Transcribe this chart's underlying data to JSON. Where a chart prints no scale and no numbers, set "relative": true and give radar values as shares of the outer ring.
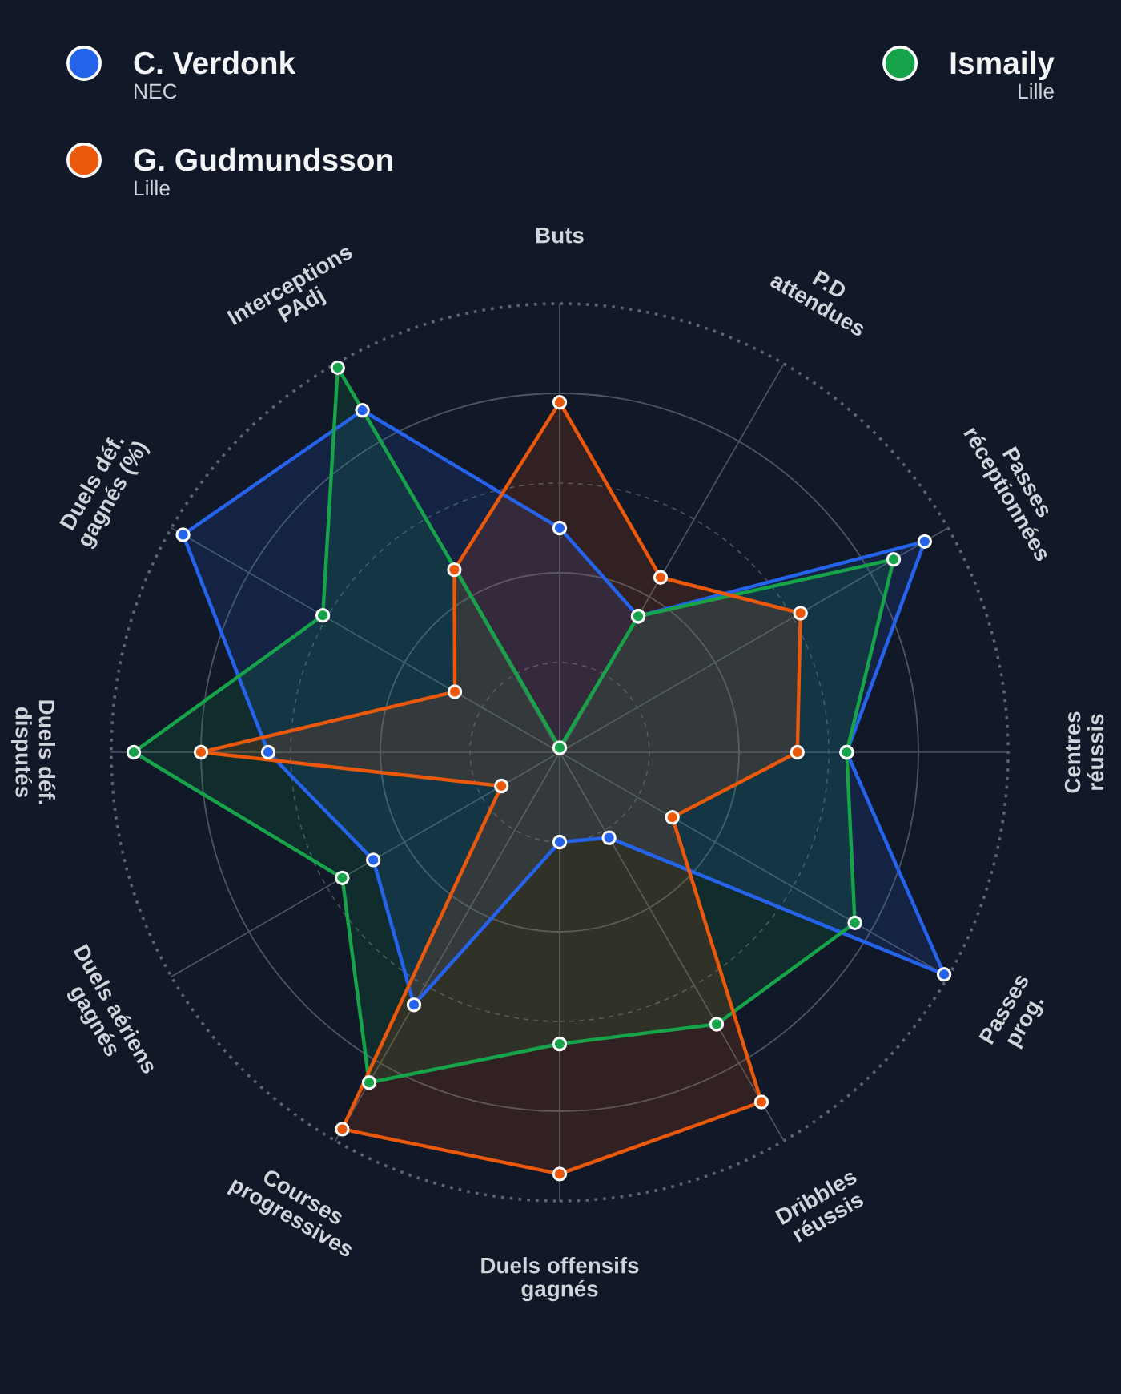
{
  "chart_data": {
    "type": "radar",
    "relative": true,
    "categories": [
      "Buts",
      "P.D\nattendues",
      "Passes\nréceptionnées",
      "Centres\nréussis",
      "Passes\nprog.",
      "Dribbles\nréussis",
      "Duels offensifs\ngagnés",
      "Courses\nprogressives",
      "Duels aériens\ngagnés",
      "Duels déf.\ndisputés",
      "Duels déf.\ngagnés (%)",
      "Interceptions\nPAdj"
    ],
    "series": [
      {
        "name": "C. Verdonk\nNEC",
        "color": "#2563eb",
        "values": [
          0.5,
          0.35,
          0.94,
          0.64,
          0.99,
          0.22,
          0.2,
          0.65,
          0.48,
          0.65,
          0.97,
          0.88
        ]
      },
      {
        "name": "Ismaily\nLille",
        "color": "#16a34a",
        "values": [
          0.01,
          0.35,
          0.86,
          0.64,
          0.76,
          0.7,
          0.65,
          0.85,
          0.56,
          0.95,
          0.61,
          0.99
        ]
      },
      {
        "name": "G. Gudmundsson\nLille",
        "color": "#ea580c",
        "values": [
          0.78,
          0.45,
          0.62,
          0.53,
          0.29,
          0.9,
          0.94,
          0.97,
          0.15,
          0.8,
          0.27,
          0.47
        ]
      }
    ],
    "grid": true,
    "legend": "top",
    "marker": "circle",
    "line_style": "solid"
  }
}
